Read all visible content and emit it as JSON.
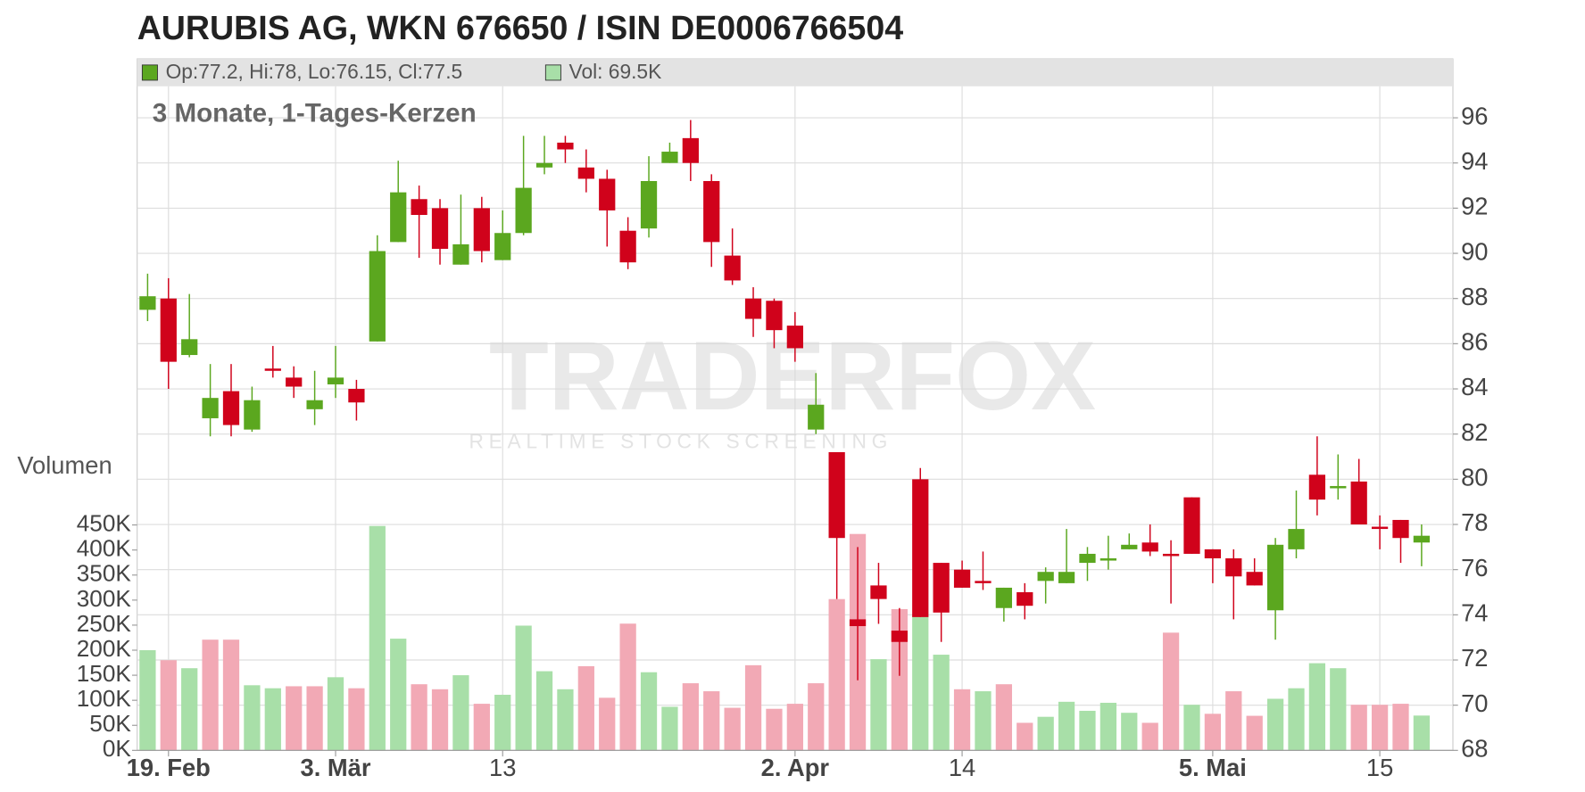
{
  "chart_data": {
    "type": "candlestick",
    "title": "AURUBIS AG, WKN 676650 / ISIN DE0006766504",
    "subtitle": "3 Monate, 1-Tages-Kerzen",
    "watermark": [
      "TRADERFOX",
      "REALTIME STOCK SCREENING"
    ],
    "legend": [
      {
        "label": "Op:77.2, Hi:78, Lo:76.15, Cl:77.5",
        "color": "#5ba71f"
      },
      {
        "label": "Vol: 69.5K",
        "color": "#a8dfa8"
      }
    ],
    "categories": [
      null,
      "19. Feb",
      null,
      null,
      null,
      null,
      null,
      null,
      null,
      "3. Mär",
      null,
      null,
      null,
      null,
      null,
      null,
      null,
      "13",
      null,
      null,
      null,
      null,
      null,
      null,
      null,
      null,
      null,
      null,
      null,
      null,
      null,
      "2. Apr",
      null,
      null,
      null,
      null,
      null,
      null,
      null,
      "14",
      null,
      null,
      null,
      null,
      null,
      null,
      null,
      null,
      null,
      null,
      null,
      "5. Mai",
      null,
      null,
      null,
      null,
      null,
      null,
      null,
      "15",
      null,
      null
    ],
    "open": [
      87.5,
      88.0,
      85.5,
      82.7,
      83.9,
      82.2,
      84.9,
      84.5,
      83.1,
      84.2,
      84.0,
      86.1,
      90.5,
      92.4,
      92.0,
      89.5,
      92.0,
      89.7,
      90.9,
      93.8,
      94.9,
      93.8,
      93.3,
      91.0,
      91.1,
      94.0,
      95.1,
      93.2,
      89.9,
      88.0,
      87.9,
      86.8,
      82.2,
      81.2,
      73.8,
      75.3,
      73.3,
      80.0,
      76.3,
      76.0,
      75.5,
      74.3,
      75.0,
      75.5,
      75.4,
      76.3,
      76.4,
      76.9,
      77.2,
      76.7,
      79.2,
      76.9,
      76.5,
      75.9,
      74.2,
      76.9,
      80.2,
      79.6,
      79.9,
      77.9,
      78.2,
      77.2
    ],
    "high": [
      89.1,
      88.9,
      88.2,
      85.1,
      85.1,
      84.1,
      85.9,
      85.0,
      84.8,
      85.9,
      84.4,
      90.8,
      94.1,
      93.0,
      92.4,
      92.6,
      92.5,
      91.9,
      95.2,
      95.2,
      95.2,
      94.6,
      93.7,
      91.6,
      94.3,
      94.9,
      95.9,
      93.5,
      91.1,
      88.5,
      88.0,
      87.4,
      84.7,
      81.2,
      77.0,
      76.3,
      74.3,
      80.5,
      76.3,
      76.4,
      76.8,
      75.2,
      75.4,
      76.1,
      77.8,
      77.0,
      77.5,
      77.6,
      78.0,
      77.3,
      79.2,
      76.9,
      76.9,
      76.5,
      77.4,
      79.5,
      81.9,
      81.1,
      80.9,
      78.4,
      78.2,
      78
    ],
    "low": [
      87.0,
      84.0,
      85.4,
      81.9,
      81.9,
      82.1,
      84.5,
      83.6,
      82.4,
      83.6,
      82.6,
      86.1,
      90.5,
      89.8,
      89.5,
      89.5,
      89.6,
      89.7,
      90.8,
      93.5,
      94.0,
      92.7,
      90.3,
      89.3,
      90.7,
      94.0,
      93.2,
      89.4,
      88.6,
      86.3,
      85.8,
      85.2,
      82.0,
      74.7,
      71.1,
      73.6,
      71.3,
      73.9,
      72.8,
      75.2,
      75.1,
      73.7,
      73.8,
      74.5,
      75.4,
      75.5,
      76.0,
      76.9,
      76.6,
      74.5,
      76.7,
      75.4,
      73.8,
      75.3,
      72.9,
      76.5,
      78.4,
      79.1,
      78.0,
      76.9,
      76.3,
      76.15
    ],
    "close": [
      88.1,
      85.2,
      86.2,
      83.6,
      82.4,
      83.5,
      84.8,
      84.1,
      83.5,
      84.5,
      83.4,
      90.1,
      92.7,
      91.7,
      90.2,
      90.4,
      90.1,
      90.9,
      92.9,
      94.0,
      94.6,
      93.3,
      91.9,
      89.6,
      93.2,
      94.5,
      94.0,
      90.5,
      88.8,
      87.1,
      86.6,
      85.8,
      83.3,
      77.4,
      73.5,
      74.7,
      72.8,
      73.9,
      74.1,
      75.2,
      75.4,
      75.2,
      74.4,
      75.9,
      75.9,
      76.7,
      76.5,
      77.1,
      76.8,
      76.6,
      76.7,
      76.5,
      75.7,
      75.3,
      77.1,
      77.8,
      79.1,
      79.7,
      78.0,
      77.8,
      77.4,
      77.5
    ],
    "up_color": "#5ba71f",
    "down_color": "#d0021b",
    "ylim": [
      68,
      97
    ],
    "yticks": [
      68,
      70,
      72,
      74,
      76,
      78,
      80,
      82,
      84,
      86,
      88,
      90,
      92,
      94,
      96
    ],
    "grid": true,
    "volume": {
      "label": "Volumen",
      "values": [
        200000,
        180000,
        164000,
        221000,
        221000,
        130000,
        124000,
        128000,
        128000,
        146000,
        124000,
        448000,
        223000,
        132000,
        122000,
        150000,
        93000,
        111000,
        249000,
        158000,
        122000,
        168000,
        105000,
        253000,
        156000,
        87000,
        134000,
        118000,
        85000,
        170000,
        83000,
        93000,
        134000,
        302000,
        432000,
        182000,
        282000,
        272000,
        191000,
        122000,
        118000,
        132000,
        55000,
        67000,
        97000,
        79000,
        95000,
        75000,
        55000,
        235000,
        91000,
        73000,
        118000,
        69000,
        103000,
        124000,
        174000,
        164000,
        91000,
        91000,
        93000,
        69500
      ],
      "colors": [
        "#a8dfa8",
        "#f2a9b5",
        "#a8dfa8",
        "#f2a9b5",
        "#f2a9b5",
        "#a8dfa8",
        "#a8dfa8",
        "#f2a9b5",
        "#f2a9b5",
        "#a8dfa8",
        "#f2a9b5",
        "#a8dfa8",
        "#a8dfa8",
        "#f2a9b5",
        "#f2a9b5",
        "#a8dfa8",
        "#f2a9b5",
        "#a8dfa8",
        "#a8dfa8",
        "#a8dfa8",
        "#a8dfa8",
        "#f2a9b5",
        "#f2a9b5",
        "#f2a9b5",
        "#a8dfa8",
        "#a8dfa8",
        "#f2a9b5",
        "#f2a9b5",
        "#f2a9b5",
        "#f2a9b5",
        "#f2a9b5",
        "#f2a9b5",
        "#f2a9b5",
        "#f2a9b5",
        "#f2a9b5",
        "#a8dfa8",
        "#f2a9b5",
        "#a8dfa8",
        "#a8dfa8",
        "#f2a9b5",
        "#a8dfa8",
        "#f2a9b5",
        "#f2a9b5",
        "#a8dfa8",
        "#a8dfa8",
        "#a8dfa8",
        "#a8dfa8",
        "#a8dfa8",
        "#f2a9b5",
        "#f2a9b5",
        "#a8dfa8",
        "#f2a9b5",
        "#f2a9b5",
        "#f2a9b5",
        "#a8dfa8",
        "#a8dfa8",
        "#a8dfa8",
        "#a8dfa8",
        "#f2a9b5",
        "#f2a9b5",
        "#f2a9b5",
        "#a8dfa8"
      ],
      "ylim": [
        0,
        450000
      ],
      "yticks": [
        {
          "value": 0,
          "label": "0K"
        },
        {
          "value": 50000,
          "label": "50K"
        },
        {
          "value": 100000,
          "label": "100K"
        },
        {
          "value": 150000,
          "label": "150K"
        },
        {
          "value": 200000,
          "label": "200K"
        },
        {
          "value": 250000,
          "label": "250K"
        },
        {
          "value": 300000,
          "label": "300K"
        },
        {
          "value": 350000,
          "label": "350K"
        },
        {
          "value": 400000,
          "label": "400K"
        },
        {
          "value": 450000,
          "label": "450K"
        }
      ]
    }
  }
}
